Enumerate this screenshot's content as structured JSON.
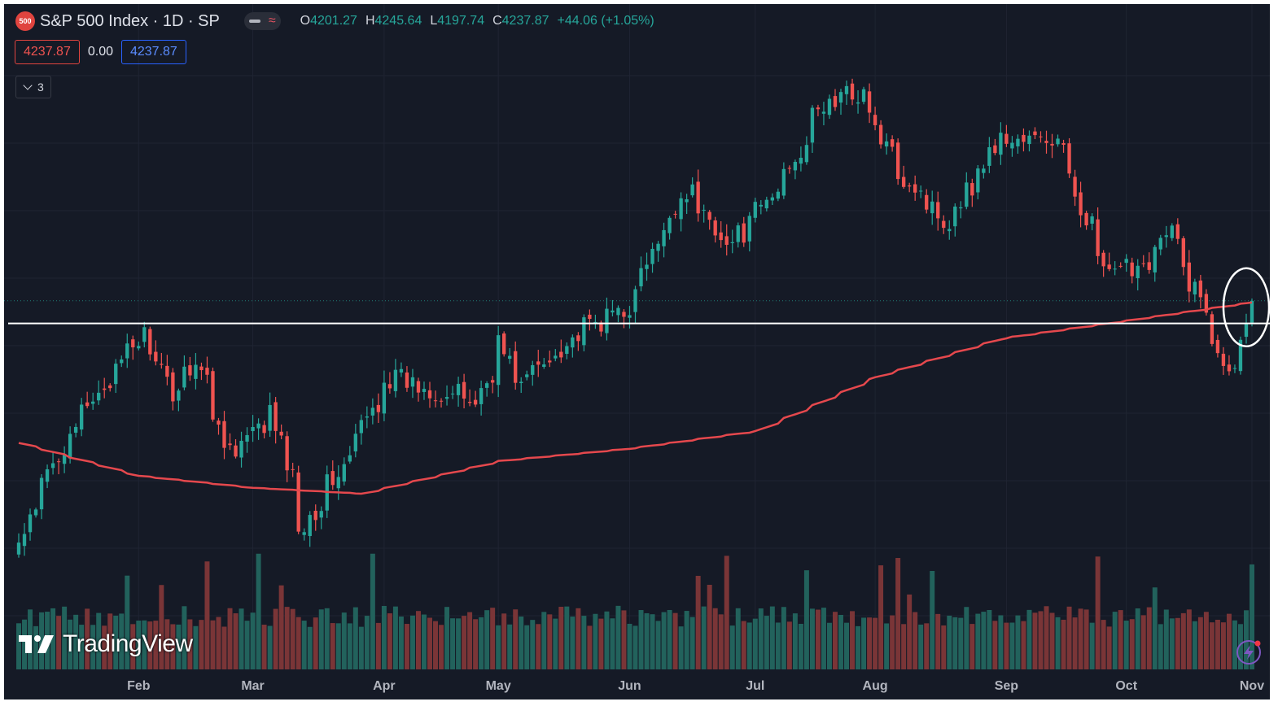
{
  "header": {
    "symbol_badge": "500",
    "symbol_title": "S&P 500 Index · 1D · SP",
    "ohlc": {
      "open_label": "O",
      "open": "4201.27",
      "high_label": "H",
      "high": "4245.64",
      "low_label": "L",
      "low": "4197.74",
      "close_label": "C",
      "close": "4237.87",
      "change": "+44.06 (+1.05%)"
    },
    "bid": "4237.87",
    "spread": "0.00",
    "ask": "4237.87",
    "indicators_count": "3"
  },
  "branding": {
    "logo_text": "TradingView"
  },
  "icons": {
    "visibility": "eye-icon",
    "indicator": "wave-icon",
    "collapse": "chevron-down-icon",
    "alert": "lightning-icon"
  },
  "colors": {
    "up": "#26a69a",
    "down": "#ef5350",
    "ma_line": "#e5484d",
    "background": "#151a26",
    "level_line": "#ffffff",
    "highlight": "#ffffff"
  },
  "chart_data": {
    "type": "candlestick",
    "x_ticks": [
      "Feb",
      "Mar",
      "Apr",
      "May",
      "Jun",
      "Jul",
      "Aug",
      "Sep",
      "Oct",
      "Nov"
    ],
    "y_range": [
      3700,
      4650
    ],
    "horizontal_level": 4200,
    "last_close": 4237.87,
    "waypoints": [
      {
        "date": "2023-01-03",
        "close": 3830
      },
      {
        "date": "2023-01-13",
        "close": 3999
      },
      {
        "date": "2023-02-02",
        "close": 4180
      },
      {
        "date": "2023-02-09",
        "close": 4085
      },
      {
        "date": "2023-02-15",
        "close": 4140
      },
      {
        "date": "2023-02-24",
        "close": 3975
      },
      {
        "date": "2023-03-06",
        "close": 4050
      },
      {
        "date": "2023-03-13",
        "close": 3860
      },
      {
        "date": "2023-03-24",
        "close": 3970
      },
      {
        "date": "2023-04-03",
        "close": 4110
      },
      {
        "date": "2023-04-25",
        "close": 4070
      },
      {
        "date": "2023-05-01",
        "close": 4170
      },
      {
        "date": "2023-05-05",
        "close": 4095
      },
      {
        "date": "2023-05-18",
        "close": 4175
      },
      {
        "date": "2023-06-01",
        "close": 4230
      },
      {
        "date": "2023-06-15",
        "close": 4425
      },
      {
        "date": "2023-06-26",
        "close": 4330
      },
      {
        "date": "2023-07-06",
        "close": 4410
      },
      {
        "date": "2023-07-19",
        "close": 4565
      },
      {
        "date": "2023-07-28",
        "close": 4590
      },
      {
        "date": "2023-08-04",
        "close": 4478
      },
      {
        "date": "2023-08-18",
        "close": 4370
      },
      {
        "date": "2023-08-31",
        "close": 4508
      },
      {
        "date": "2023-09-14",
        "close": 4505
      },
      {
        "date": "2023-09-27",
        "close": 4275
      },
      {
        "date": "2023-10-06",
        "close": 4308
      },
      {
        "date": "2023-10-12",
        "close": 4350
      },
      {
        "date": "2023-10-27",
        "close": 4117
      },
      {
        "date": "2023-11-01",
        "close": 4237.87
      }
    ],
    "moving_average": {
      "waypoints": [
        {
          "date": "2023-01-03",
          "value": 4000
        },
        {
          "date": "2023-02-01",
          "value": 3945
        },
        {
          "date": "2023-03-01",
          "value": 3925
        },
        {
          "date": "2023-03-28",
          "value": 3915
        },
        {
          "date": "2023-05-01",
          "value": 3970
        },
        {
          "date": "2023-06-01",
          "value": 3990
        },
        {
          "date": "2023-07-03",
          "value": 4020
        },
        {
          "date": "2023-08-01",
          "value": 4110
        },
        {
          "date": "2023-09-01",
          "value": 4175
        },
        {
          "date": "2023-10-02",
          "value": 4205
        },
        {
          "date": "2023-11-01",
          "value": 4235
        }
      ]
    },
    "volume_range": [
      0,
      10
    ]
  }
}
